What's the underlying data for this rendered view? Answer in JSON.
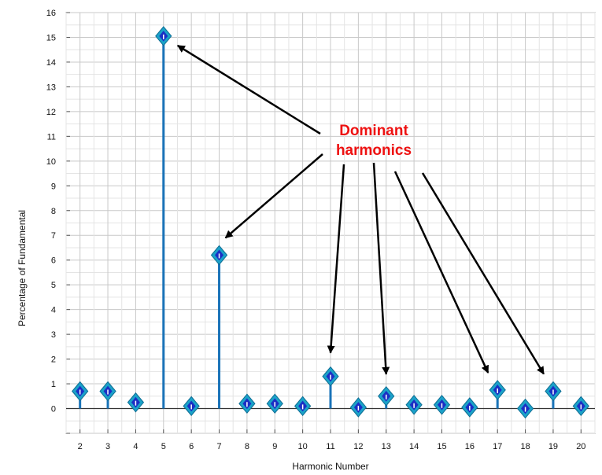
{
  "chart_data": {
    "type": "stem",
    "xlabel": "Harmonic Number",
    "ylabel": "Percentage of Fundamental",
    "x_ticks": [
      2,
      3,
      4,
      5,
      6,
      7,
      8,
      9,
      10,
      11,
      12,
      13,
      14,
      15,
      16,
      17,
      18,
      19,
      20
    ],
    "y_ticks": [
      0,
      1,
      2,
      3,
      4,
      5,
      6,
      7,
      8,
      9,
      10,
      11,
      12,
      13,
      14,
      15,
      16
    ],
    "ylim": [
      -1,
      16
    ],
    "xlim": [
      1.5,
      20.5
    ],
    "grid": true,
    "x": [
      2,
      3,
      4,
      5,
      6,
      7,
      8,
      9,
      10,
      11,
      12,
      13,
      14,
      15,
      16,
      17,
      18,
      19,
      20
    ],
    "values": [
      0.7,
      0.7,
      0.25,
      15.05,
      0.1,
      6.2,
      0.2,
      0.2,
      0.1,
      1.3,
      0.05,
      0.5,
      0.15,
      0.15,
      0.05,
      0.75,
      0.0,
      0.7,
      0.1
    ],
    "annotation": {
      "lines": [
        "Dominant",
        "harmonics"
      ],
      "color": "#ee1111",
      "points_to": [
        5,
        7,
        11,
        13,
        17,
        19
      ]
    },
    "colors": {
      "stem": "#1a73b8",
      "marker_outer": "#1ba2c9",
      "marker_inner": "#1b2fc4",
      "arrow": "#000000"
    }
  }
}
